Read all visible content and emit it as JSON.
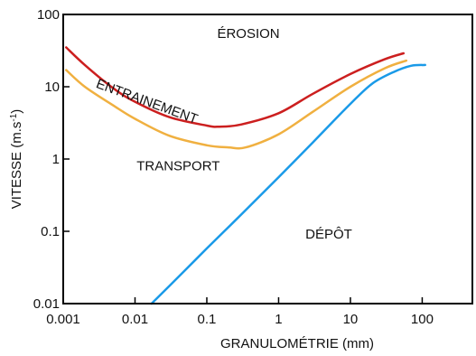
{
  "chart_data": {
    "type": "line",
    "xscale": "log",
    "yscale": "log",
    "xlim": [
      0.001,
      500
    ],
    "ylim": [
      0.01,
      100
    ],
    "xlabel": "GRANULOMÉTRIE (mm)",
    "ylabel": "VITESSE (m.s-1)",
    "ylabel_parts": {
      "main": "VITESSE (m.s",
      "sup": "-1",
      "end": ")"
    },
    "xticks": [
      {
        "value": 0.001,
        "label": "0.001"
      },
      {
        "value": 0.01,
        "label": "0.01"
      },
      {
        "value": 0.1,
        "label": "0.1"
      },
      {
        "value": 1,
        "label": "1"
      },
      {
        "value": 10,
        "label": "10"
      },
      {
        "value": 100,
        "label": "100"
      }
    ],
    "yticks": [
      {
        "value": 0.01,
        "label": "0.01"
      },
      {
        "value": 0.1,
        "label": "0.1"
      },
      {
        "value": 1,
        "label": "1"
      },
      {
        "value": 10,
        "label": "10"
      },
      {
        "value": 100,
        "label": "100"
      }
    ],
    "series": [
      {
        "color": "#cc1f1f",
        "x": [
          0.0011,
          0.002,
          0.005,
          0.01,
          0.03,
          0.1,
          0.15,
          0.3,
          1,
          3,
          10,
          30,
          55
        ],
        "y": [
          35,
          20,
          9.5,
          6.2,
          3.8,
          2.9,
          2.8,
          3.0,
          4.3,
          8,
          15,
          24,
          29
        ]
      },
      {
        "color": "#f0b040",
        "x": [
          0.0011,
          0.002,
          0.005,
          0.01,
          0.03,
          0.1,
          0.2,
          0.35,
          1,
          3,
          10,
          30,
          60
        ],
        "y": [
          17,
          10,
          5.5,
          3.6,
          2.1,
          1.55,
          1.45,
          1.45,
          2.2,
          4.5,
          10,
          18,
          23
        ]
      },
      {
        "color": "#1a9ae8",
        "x": [
          0.017,
          0.05,
          0.1,
          0.3,
          1,
          3,
          10,
          20,
          40,
          70,
          110
        ],
        "y": [
          0.01,
          0.029,
          0.058,
          0.17,
          0.56,
          1.7,
          5.8,
          11,
          16,
          19.5,
          20
        ]
      }
    ],
    "annotations": [
      {
        "id": "erosion",
        "text": "ÉROSION",
        "x": 0.38,
        "y": 47
      },
      {
        "id": "entrainement",
        "text": "ENTRAINEMENT",
        "x": 0.014,
        "y": 5.5,
        "rotate": 20
      },
      {
        "id": "transport",
        "text": "TRANSPORT",
        "x": 0.04,
        "y": 0.7
      },
      {
        "id": "depot",
        "text": "DÉPÔT",
        "x": 5,
        "y": 0.08
      }
    ],
    "grid": false,
    "legend": "none"
  }
}
